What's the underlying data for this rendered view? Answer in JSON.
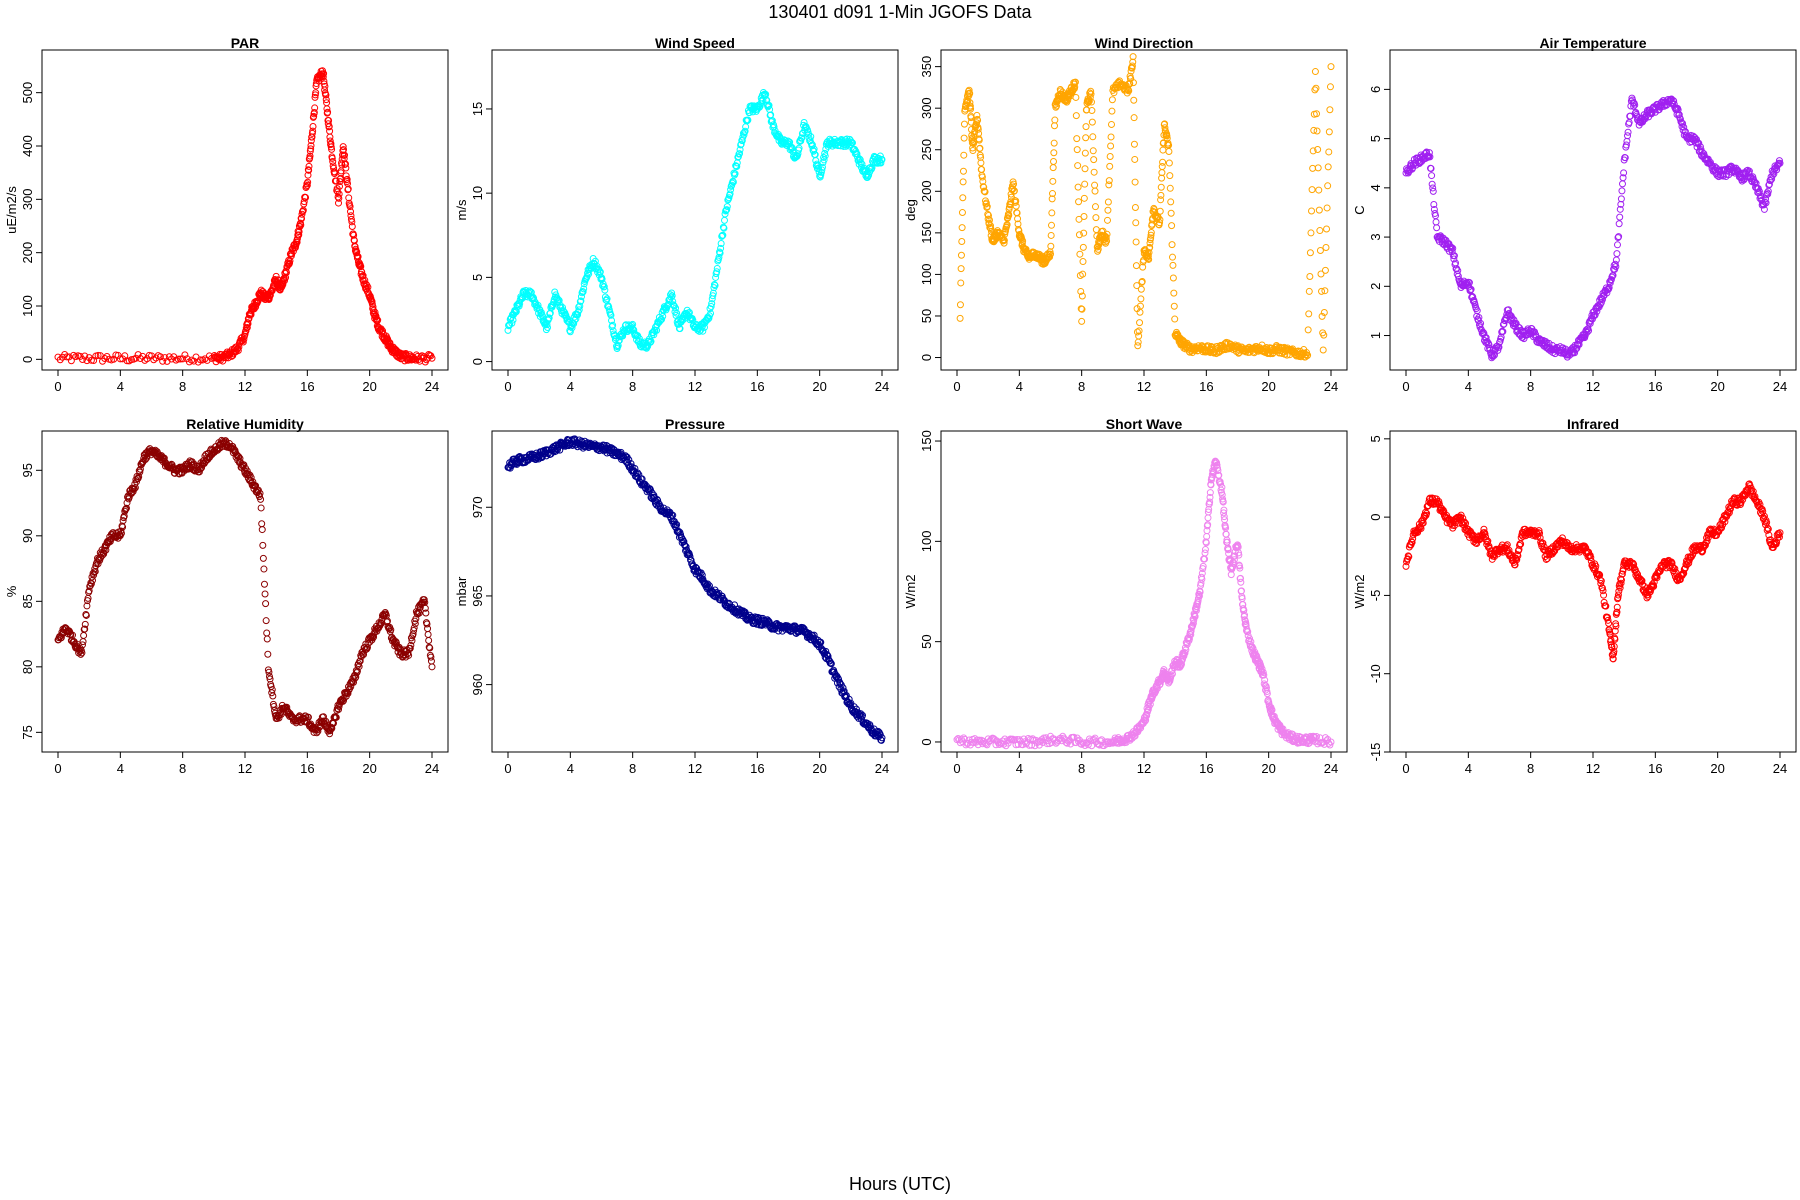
{
  "page": {
    "title": "130401   d091   1-Min  JGOFS Data",
    "xlabel": "Hours (UTC)"
  },
  "chart_data": [
    {
      "type": "scatter",
      "title": "PAR",
      "ylabel": "uE/m2/s",
      "color": "#ff0000",
      "xlim": [
        0,
        24
      ],
      "xticks": [
        0,
        4,
        8,
        12,
        16,
        20,
        24
      ],
      "ylim": [
        -20,
        580
      ],
      "yticks": [
        0,
        100,
        200,
        300,
        400,
        500
      ],
      "series": [
        {
          "x": [
            0,
            2,
            4,
            6,
            8,
            10,
            10.5,
            11,
            11.5,
            12,
            12.3,
            12.6,
            13,
            13.3,
            13.6,
            14,
            14.3,
            14.6,
            15,
            15.3,
            15.6,
            16,
            16.3,
            16.6,
            17,
            17.3,
            17.6,
            18,
            18.3,
            18.6,
            19,
            19.3,
            19.6,
            20,
            20.3,
            20.6,
            21,
            21.3,
            21.6,
            22,
            22.5,
            23,
            24
          ],
          "y": [
            2,
            2,
            2,
            2,
            2,
            2,
            3,
            8,
            20,
            45,
            85,
            100,
            125,
            115,
            120,
            150,
            130,
            160,
            200,
            220,
            260,
            330,
            420,
            520,
            540,
            460,
            380,
            300,
            400,
            320,
            220,
            180,
            150,
            120,
            85,
            60,
            40,
            25,
            15,
            5,
            3,
            2,
            2
          ]
        }
      ]
    },
    {
      "type": "scatter",
      "title": "Wind Speed",
      "ylabel": "m/s",
      "color": "#00ffff",
      "xlim": [
        0,
        24
      ],
      "xticks": [
        0,
        4,
        8,
        12,
        16,
        20,
        24
      ],
      "ylim": [
        -0.5,
        18.5
      ],
      "yticks": [
        0,
        5,
        10,
        15
      ],
      "series": [
        {
          "x": [
            0,
            0.5,
            1,
            1.5,
            2,
            2.5,
            3,
            3.5,
            4,
            4.5,
            5,
            5.5,
            6,
            6.5,
            7,
            7.5,
            8,
            8.5,
            9,
            9.5,
            10,
            10.5,
            11,
            11.5,
            12,
            12.5,
            13,
            13.5,
            14,
            14.5,
            15,
            15.5,
            16,
            16.5,
            17,
            17.5,
            18,
            18.5,
            19,
            19.5,
            20,
            20.5,
            21,
            21.5,
            22,
            22.5,
            23,
            23.5,
            24
          ],
          "y": [
            2,
            3,
            4,
            4,
            3,
            2,
            4,
            3,
            2,
            3,
            5,
            6,
            5,
            3,
            1,
            2,
            2,
            1,
            1,
            2,
            3,
            4,
            2,
            3,
            2,
            2,
            3,
            6,
            9,
            11,
            13,
            15,
            15,
            16,
            14,
            13,
            13,
            12,
            14,
            13,
            11,
            13,
            13,
            13,
            13,
            12,
            11,
            12,
            12
          ]
        }
      ]
    },
    {
      "type": "scatter",
      "title": "Wind Direction",
      "ylabel": "deg",
      "color": "#ffa500",
      "xlim": [
        0,
        24
      ],
      "xticks": [
        0,
        4,
        8,
        12,
        16,
        20,
        24
      ],
      "ylim": [
        -15,
        370
      ],
      "yticks": [
        0,
        50,
        100,
        150,
        200,
        250,
        300,
        350
      ],
      "series": [
        {
          "x": [
            0.2,
            0.5,
            0.8,
            1,
            1.3,
            1.6,
            2,
            2.3,
            2.6,
            3,
            3.3,
            3.6,
            4,
            4.3,
            4.6,
            5,
            5.3,
            5.6,
            6,
            6.3,
            6.6,
            7,
            7.3,
            7.6,
            8,
            8.3,
            8.6,
            9,
            9.3,
            9.6,
            10,
            10.5,
            11,
            11.3,
            11.6,
            12,
            12.3,
            12.6,
            13,
            13.3,
            13.6,
            14,
            14.3,
            14.6,
            15,
            15.5,
            16,
            16.5,
            17,
            17.5,
            18,
            18.5,
            19,
            19.5,
            20,
            20.5,
            21,
            21.5,
            22,
            22.5,
            23,
            23.5,
            24
          ],
          "y": [
            50,
            300,
            320,
            250,
            290,
            220,
            170,
            140,
            150,
            140,
            170,
            210,
            150,
            130,
            120,
            125,
            120,
            115,
            125,
            300,
            320,
            310,
            320,
            330,
            40,
            300,
            320,
            130,
            150,
            140,
            320,
            330,
            320,
            360,
            10,
            130,
            120,
            180,
            160,
            280,
            250,
            30,
            20,
            15,
            10,
            12,
            10,
            8,
            12,
            15,
            10,
            8,
            10,
            12,
            8,
            10,
            8,
            6,
            5,
            5,
            345,
            5,
            350
          ]
        }
      ]
    },
    {
      "type": "scatter",
      "title": "Air Temperature",
      "ylabel": "C",
      "color": "#a020f0",
      "xlim": [
        0,
        24
      ],
      "xticks": [
        0,
        4,
        8,
        12,
        16,
        20,
        24
      ],
      "ylim": [
        0.3,
        6.8
      ],
      "yticks": [
        1,
        2,
        3,
        4,
        5,
        6
      ],
      "series": [
        {
          "x": [
            0,
            0.5,
            1,
            1.5,
            2,
            2.5,
            3,
            3.5,
            4,
            4.5,
            5,
            5.5,
            6,
            6.5,
            7,
            7.5,
            8,
            8.5,
            9,
            9.5,
            10,
            10.5,
            11,
            11.5,
            12,
            12.5,
            13,
            13.5,
            14,
            14.5,
            15,
            15.5,
            16,
            16.5,
            17,
            17.5,
            18,
            18.5,
            19,
            19.5,
            20,
            20.5,
            21,
            21.5,
            22,
            22.5,
            23,
            23.5,
            24
          ],
          "y": [
            4.3,
            4.5,
            4.6,
            4.7,
            3.0,
            2.9,
            2.7,
            2.0,
            2.1,
            1.5,
            1.0,
            0.6,
            0.8,
            1.5,
            1.2,
            1.0,
            1.1,
            0.9,
            0.8,
            0.7,
            0.7,
            0.6,
            0.8,
            1.0,
            1.4,
            1.7,
            2.0,
            2.5,
            4.5,
            5.8,
            5.3,
            5.5,
            5.6,
            5.7,
            5.8,
            5.5,
            5.0,
            5.0,
            4.7,
            4.5,
            4.3,
            4.3,
            4.4,
            4.2,
            4.3,
            4.0,
            3.6,
            4.3,
            4.5
          ]
        }
      ]
    },
    {
      "type": "scatter",
      "title": "Relative Humidity",
      "ylabel": "%",
      "color": "#8b0000",
      "xlim": [
        0,
        24
      ],
      "xticks": [
        0,
        4,
        8,
        12,
        16,
        20,
        24
      ],
      "ylim": [
        73.5,
        98
      ],
      "yticks": [
        75,
        80,
        85,
        90,
        95
      ],
      "series": [
        {
          "x": [
            0,
            0.5,
            1,
            1.5,
            2,
            2.5,
            3,
            3.5,
            4,
            4.5,
            5,
            5.5,
            6,
            6.5,
            7,
            7.5,
            8,
            8.5,
            9,
            9.5,
            10,
            10.5,
            11,
            11.5,
            12,
            12.5,
            13,
            13.5,
            14,
            14.5,
            15,
            15.5,
            16,
            16.5,
            17,
            17.5,
            18,
            18.5,
            19,
            19.5,
            20,
            20.5,
            21,
            21.5,
            22,
            22.5,
            23,
            23.5,
            24
          ],
          "y": [
            82,
            83,
            82,
            81,
            86,
            88,
            89,
            90,
            90,
            93,
            94,
            96,
            96.5,
            96,
            95.5,
            95,
            95,
            95.5,
            95,
            96,
            96.5,
            97,
            97,
            96,
            95,
            94,
            93,
            80,
            76,
            77,
            76,
            76,
            76,
            75,
            76,
            75,
            77,
            78,
            79,
            81,
            82,
            83,
            84,
            82,
            81,
            81,
            84,
            85,
            80
          ]
        }
      ]
    },
    {
      "type": "scatter",
      "title": "Pressure",
      "ylabel": "mbar",
      "color": "#00008b",
      "xlim": [
        0,
        24
      ],
      "xticks": [
        0,
        4,
        8,
        12,
        16,
        20,
        24
      ],
      "ylim": [
        956.2,
        974.3
      ],
      "yticks": [
        960,
        965,
        970
      ],
      "series": [
        {
          "x": [
            0,
            0.5,
            1,
            1.5,
            2,
            2.5,
            3,
            3.5,
            4,
            4.5,
            5,
            5.5,
            6,
            6.5,
            7,
            7.5,
            8,
            8.5,
            9,
            9.5,
            10,
            10.5,
            11,
            11.5,
            12,
            12.5,
            13,
            13.5,
            14,
            14.5,
            15,
            15.5,
            16,
            16.5,
            17,
            17.5,
            18,
            18.5,
            19,
            19.5,
            20,
            20.5,
            21,
            21.5,
            22,
            22.5,
            23,
            23.5,
            24
          ],
          "y": [
            972.3,
            972.6,
            972.7,
            972.8,
            972.9,
            973.1,
            973.3,
            973.5,
            973.7,
            973.6,
            973.5,
            973.4,
            973.4,
            973.2,
            973.0,
            972.8,
            972.2,
            971.5,
            971.0,
            970.3,
            969.8,
            969.5,
            968.5,
            967.5,
            966.5,
            966.0,
            965.3,
            965.0,
            964.6,
            964.3,
            964.0,
            963.7,
            963.6,
            963.5,
            963.3,
            963.2,
            963.2,
            963.1,
            963.0,
            962.7,
            962.3,
            961.5,
            960.5,
            959.6,
            958.8,
            958.3,
            957.8,
            957.3,
            957.0
          ]
        }
      ]
    },
    {
      "type": "scatter",
      "title": "Short Wave",
      "ylabel": "W/m2",
      "color": "#ee82ee",
      "xlim": [
        0,
        24
      ],
      "xticks": [
        0,
        4,
        8,
        12,
        16,
        20,
        24
      ],
      "ylim": [
        -5,
        155
      ],
      "yticks": [
        0,
        50,
        100,
        150
      ],
      "series": [
        {
          "x": [
            0,
            1,
            2,
            3,
            4,
            5,
            6,
            7,
            8,
            9,
            10,
            10.5,
            11,
            11.5,
            12,
            12.3,
            12.6,
            13,
            13.3,
            13.6,
            14,
            14.3,
            14.6,
            15,
            15.3,
            15.6,
            16,
            16.3,
            16.6,
            17,
            17.3,
            17.6,
            18,
            18.3,
            18.6,
            19,
            19.3,
            19.6,
            20,
            20.3,
            20.6,
            21,
            21.5,
            22,
            22.5,
            23,
            24
          ],
          "y": [
            1,
            0,
            0,
            0,
            0,
            0,
            1,
            1,
            0,
            0,
            0,
            1,
            2,
            5,
            10,
            18,
            25,
            30,
            35,
            30,
            40,
            38,
            45,
            55,
            65,
            75,
            100,
            130,
            140,
            125,
            100,
            85,
            100,
            70,
            55,
            45,
            40,
            35,
            20,
            12,
            8,
            4,
            2,
            1,
            1,
            1,
            0
          ]
        }
      ]
    },
    {
      "type": "scatter",
      "title": "Infrared",
      "ylabel": "W/m2",
      "color": "#ff0000",
      "xlim": [
        0,
        24
      ],
      "xticks": [
        0,
        4,
        8,
        12,
        16,
        20,
        24
      ],
      "ylim": [
        -15,
        5.5
      ],
      "yticks": [
        -15,
        -10,
        -5,
        0,
        5
      ],
      "series": [
        {
          "x": [
            0,
            0.5,
            1,
            1.5,
            2,
            2.5,
            3,
            3.5,
            4,
            4.5,
            5,
            5.5,
            6,
            6.5,
            7,
            7.5,
            8,
            8.5,
            9,
            9.5,
            10,
            10.5,
            11,
            11.5,
            12,
            12.5,
            13,
            13.3,
            13.6,
            14,
            14.5,
            15,
            15.5,
            16,
            16.5,
            17,
            17.5,
            18,
            18.5,
            19,
            19.5,
            20,
            20.5,
            21,
            21.5,
            22,
            22.5,
            23,
            23.5,
            24
          ],
          "y": [
            -3,
            -1,
            -0.5,
            1,
            1,
            0,
            -0.5,
            0,
            -1,
            -1.5,
            -1,
            -2.5,
            -2,
            -2,
            -3,
            -1,
            -1,
            -1,
            -2.5,
            -2,
            -1.5,
            -2,
            -2,
            -2,
            -3,
            -4,
            -7,
            -9,
            -5,
            -3,
            -3,
            -4,
            -5,
            -4,
            -3,
            -3,
            -4,
            -3,
            -2,
            -2,
            -1,
            -1,
            0,
            1,
            1,
            2,
            1,
            0,
            -2,
            -1
          ]
        }
      ]
    }
  ]
}
